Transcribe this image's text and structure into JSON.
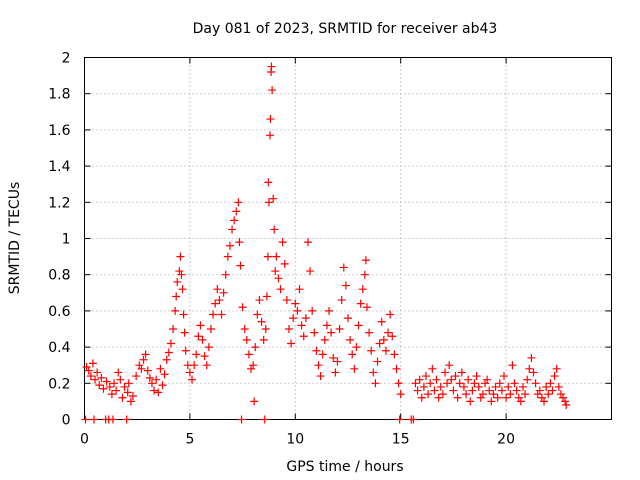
{
  "chart_data": {
    "type": "scatter",
    "title": "Day 081 of 2023, SRMTID for receiver ab43",
    "xlabel": "GPS time / hours",
    "ylabel": "SRMTID / TECUs",
    "xlim": [
      0,
      25
    ],
    "ylim": [
      0,
      2
    ],
    "xticks": [
      0,
      5,
      10,
      15,
      20
    ],
    "xtick_labels": [
      "0",
      "5",
      "10",
      "15",
      "20"
    ],
    "yticks": [
      0,
      0.2,
      0.4,
      0.6,
      0.8,
      1,
      1.2,
      1.4,
      1.6,
      1.8,
      2
    ],
    "ytick_labels": [
      "0",
      "0.2",
      "0.4",
      "0.6",
      "0.8",
      "1",
      "1.2",
      "1.4",
      "1.6",
      "1.8",
      "2"
    ],
    "grid": true,
    "marker": "+",
    "color": "#ff0000",
    "series": [
      {
        "name": "SRMTID",
        "points": [
          [
            0.05,
            0.0
          ],
          [
            0.1,
            0.29
          ],
          [
            0.2,
            0.27
          ],
          [
            0.3,
            0.24
          ],
          [
            0.4,
            0.31
          ],
          [
            0.45,
            0.0
          ],
          [
            0.5,
            0.22
          ],
          [
            0.6,
            0.26
          ],
          [
            0.7,
            0.19
          ],
          [
            0.8,
            0.23
          ],
          [
            0.9,
            0.17
          ],
          [
            1.0,
            0.0
          ],
          [
            1.05,
            0.21
          ],
          [
            1.15,
            0.0
          ],
          [
            1.2,
            0.18
          ],
          [
            1.3,
            0.14
          ],
          [
            1.35,
            0.0
          ],
          [
            1.4,
            0.2
          ],
          [
            1.5,
            0.16
          ],
          [
            1.6,
            0.26
          ],
          [
            1.7,
            0.22
          ],
          [
            1.8,
            0.12
          ],
          [
            1.9,
            0.18
          ],
          [
            2.0,
            0.0
          ],
          [
            2.05,
            0.15
          ],
          [
            2.1,
            0.2
          ],
          [
            2.2,
            0.1
          ],
          [
            2.3,
            0.13
          ],
          [
            2.45,
            0.24
          ],
          [
            2.6,
            0.3
          ],
          [
            2.7,
            0.28
          ],
          [
            2.8,
            0.33
          ],
          [
            2.9,
            0.36
          ],
          [
            3.0,
            0.27
          ],
          [
            3.1,
            0.23
          ],
          [
            3.2,
            0.2
          ],
          [
            3.3,
            0.16
          ],
          [
            3.4,
            0.22
          ],
          [
            3.5,
            0.15
          ],
          [
            3.6,
            0.28
          ],
          [
            3.7,
            0.19
          ],
          [
            3.8,
            0.25
          ],
          [
            3.9,
            0.33
          ],
          [
            4.0,
            0.37
          ],
          [
            4.1,
            0.42
          ],
          [
            4.2,
            0.5
          ],
          [
            4.3,
            0.6
          ],
          [
            4.35,
            0.68
          ],
          [
            4.4,
            0.76
          ],
          [
            4.5,
            0.82
          ],
          [
            4.55,
            0.9
          ],
          [
            4.6,
            0.8
          ],
          [
            4.65,
            0.72
          ],
          [
            4.7,
            0.58
          ],
          [
            4.75,
            0.48
          ],
          [
            4.8,
            0.38
          ],
          [
            4.9,
            0.3
          ],
          [
            5.0,
            0.26
          ],
          [
            5.1,
            0.22
          ],
          [
            5.2,
            0.3
          ],
          [
            5.3,
            0.36
          ],
          [
            5.4,
            0.46
          ],
          [
            5.5,
            0.52
          ],
          [
            5.6,
            0.44
          ],
          [
            5.7,
            0.35
          ],
          [
            5.8,
            0.3
          ],
          [
            5.9,
            0.4
          ],
          [
            6.0,
            0.5
          ],
          [
            6.1,
            0.58
          ],
          [
            6.2,
            0.64
          ],
          [
            6.3,
            0.72
          ],
          [
            6.4,
            0.66
          ],
          [
            6.5,
            0.58
          ],
          [
            6.6,
            0.7
          ],
          [
            6.7,
            0.8
          ],
          [
            6.8,
            0.9
          ],
          [
            6.9,
            0.96
          ],
          [
            7.0,
            1.05
          ],
          [
            7.1,
            1.1
          ],
          [
            7.2,
            1.15
          ],
          [
            7.3,
            1.2
          ],
          [
            7.35,
            0.98
          ],
          [
            7.4,
            0.85
          ],
          [
            7.45,
            0.0
          ],
          [
            7.5,
            0.62
          ],
          [
            7.6,
            0.5
          ],
          [
            7.7,
            0.44
          ],
          [
            7.8,
            0.36
          ],
          [
            7.9,
            0.28
          ],
          [
            8.0,
            0.3
          ],
          [
            8.05,
            0.1
          ],
          [
            8.1,
            0.4
          ],
          [
            8.2,
            0.58
          ],
          [
            8.3,
            0.66
          ],
          [
            8.4,
            0.54
          ],
          [
            8.5,
            0.44
          ],
          [
            8.55,
            0.0
          ],
          [
            8.6,
            0.5
          ],
          [
            8.65,
            0.68
          ],
          [
            8.7,
            0.9
          ],
          [
            8.72,
            1.31
          ],
          [
            8.75,
            1.2
          ],
          [
            8.8,
            1.57
          ],
          [
            8.82,
            1.66
          ],
          [
            8.85,
            1.92
          ],
          [
            8.87,
            1.95
          ],
          [
            8.9,
            1.82
          ],
          [
            8.95,
            1.22
          ],
          [
            9.0,
            1.05
          ],
          [
            9.05,
            0.82
          ],
          [
            9.1,
            0.9
          ],
          [
            9.2,
            0.78
          ],
          [
            9.3,
            0.72
          ],
          [
            9.4,
            0.98
          ],
          [
            9.5,
            0.86
          ],
          [
            9.6,
            0.66
          ],
          [
            9.7,
            0.5
          ],
          [
            9.8,
            0.42
          ],
          [
            9.9,
            0.56
          ],
          [
            10.0,
            0.64
          ],
          [
            10.1,
            0.6
          ],
          [
            10.2,
            0.72
          ],
          [
            10.3,
            0.52
          ],
          [
            10.4,
            0.46
          ],
          [
            10.5,
            0.56
          ],
          [
            10.6,
            0.98
          ],
          [
            10.7,
            0.82
          ],
          [
            10.8,
            0.6
          ],
          [
            10.9,
            0.48
          ],
          [
            11.0,
            0.38
          ],
          [
            11.1,
            0.3
          ],
          [
            11.2,
            0.24
          ],
          [
            11.3,
            0.36
          ],
          [
            11.4,
            0.44
          ],
          [
            11.5,
            0.52
          ],
          [
            11.6,
            0.6
          ],
          [
            11.7,
            0.48
          ],
          [
            11.8,
            0.34
          ],
          [
            11.9,
            0.26
          ],
          [
            12.0,
            0.32
          ],
          [
            12.1,
            0.5
          ],
          [
            12.2,
            0.66
          ],
          [
            12.3,
            0.84
          ],
          [
            12.4,
            0.74
          ],
          [
            12.5,
            0.56
          ],
          [
            12.6,
            0.44
          ],
          [
            12.7,
            0.36
          ],
          [
            12.8,
            0.28
          ],
          [
            12.9,
            0.4
          ],
          [
            13.0,
            0.52
          ],
          [
            13.1,
            0.64
          ],
          [
            13.2,
            0.72
          ],
          [
            13.3,
            0.8
          ],
          [
            13.35,
            0.88
          ],
          [
            13.4,
            0.62
          ],
          [
            13.5,
            0.48
          ],
          [
            13.6,
            0.38
          ],
          [
            13.7,
            0.26
          ],
          [
            13.8,
            0.2
          ],
          [
            13.9,
            0.32
          ],
          [
            14.0,
            0.42
          ],
          [
            14.1,
            0.54
          ],
          [
            14.2,
            0.44
          ],
          [
            14.3,
            0.38
          ],
          [
            14.4,
            0.48
          ],
          [
            14.5,
            0.58
          ],
          [
            14.6,
            0.46
          ],
          [
            14.7,
            0.36
          ],
          [
            14.8,
            0.28
          ],
          [
            14.9,
            0.2
          ],
          [
            14.95,
            0.0
          ],
          [
            15.0,
            0.14
          ],
          [
            15.5,
            0.0
          ],
          [
            15.6,
            0.0
          ],
          [
            15.7,
            0.2
          ],
          [
            15.8,
            0.16
          ],
          [
            15.9,
            0.22
          ],
          [
            16.0,
            0.12
          ],
          [
            16.1,
            0.18
          ],
          [
            16.2,
            0.24
          ],
          [
            16.3,
            0.14
          ],
          [
            16.4,
            0.2
          ],
          [
            16.5,
            0.28
          ],
          [
            16.6,
            0.16
          ],
          [
            16.7,
            0.22
          ],
          [
            16.8,
            0.12
          ],
          [
            16.9,
            0.18
          ],
          [
            17.0,
            0.14
          ],
          [
            17.1,
            0.26
          ],
          [
            17.2,
            0.2
          ],
          [
            17.3,
            0.3
          ],
          [
            17.4,
            0.22
          ],
          [
            17.5,
            0.16
          ],
          [
            17.6,
            0.24
          ],
          [
            17.7,
            0.12
          ],
          [
            17.8,
            0.2
          ],
          [
            17.9,
            0.26
          ],
          [
            18.0,
            0.18
          ],
          [
            18.1,
            0.14
          ],
          [
            18.2,
            0.22
          ],
          [
            18.3,
            0.1
          ],
          [
            18.4,
            0.16
          ],
          [
            18.5,
            0.2
          ],
          [
            18.6,
            0.24
          ],
          [
            18.7,
            0.18
          ],
          [
            18.8,
            0.12
          ],
          [
            18.9,
            0.14
          ],
          [
            19.0,
            0.2
          ],
          [
            19.1,
            0.22
          ],
          [
            19.2,
            0.16
          ],
          [
            19.3,
            0.1
          ],
          [
            19.4,
            0.14
          ],
          [
            19.5,
            0.18
          ],
          [
            19.6,
            0.12
          ],
          [
            19.7,
            0.2
          ],
          [
            19.8,
            0.16
          ],
          [
            19.9,
            0.24
          ],
          [
            20.0,
            0.12
          ],
          [
            20.1,
            0.18
          ],
          [
            20.2,
            0.14
          ],
          [
            20.3,
            0.3
          ],
          [
            20.4,
            0.2
          ],
          [
            20.5,
            0.16
          ],
          [
            20.6,
            0.12
          ],
          [
            20.7,
            0.1
          ],
          [
            20.8,
            0.18
          ],
          [
            20.9,
            0.14
          ],
          [
            21.0,
            0.22
          ],
          [
            21.1,
            0.28
          ],
          [
            21.2,
            0.34
          ],
          [
            21.3,
            0.26
          ],
          [
            21.4,
            0.2
          ],
          [
            21.5,
            0.14
          ],
          [
            21.6,
            0.16
          ],
          [
            21.7,
            0.12
          ],
          [
            21.8,
            0.1
          ],
          [
            21.9,
            0.18
          ],
          [
            22.0,
            0.14
          ],
          [
            22.1,
            0.2
          ],
          [
            22.2,
            0.16
          ],
          [
            22.3,
            0.24
          ],
          [
            22.4,
            0.28
          ],
          [
            22.5,
            0.18
          ],
          [
            22.6,
            0.14
          ],
          [
            22.7,
            0.12
          ],
          [
            22.8,
            0.1
          ],
          [
            22.85,
            0.08
          ]
        ]
      }
    ]
  }
}
